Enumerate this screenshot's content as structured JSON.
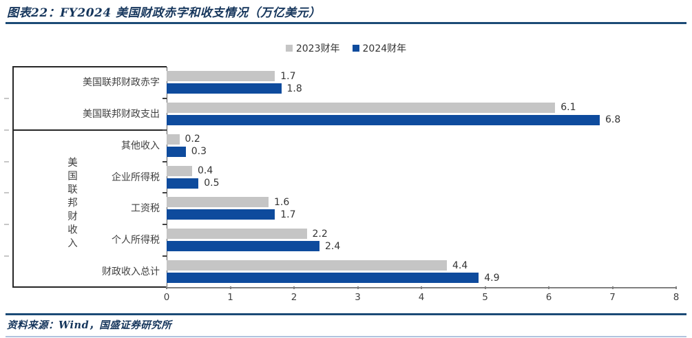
{
  "title": "图表22：FY2024 美国财政赤字和收支情况（万亿美元）",
  "legend": {
    "items": [
      {
        "label": "2023财年",
        "color": "#C5C5C5"
      },
      {
        "label": "2024财年",
        "color": "#0E4B9D"
      }
    ]
  },
  "group_label": "美国联邦财收入",
  "footer": {
    "source": "资料来源：Wind，国盛证券研究所"
  },
  "colors": {
    "title_navy": "#16365C",
    "rule_blue": "#1B4A76",
    "bottom_edge_blue": "#AFC3DE",
    "bar_2023": "#C5C5C5",
    "bar_2024": "#0E4B9D",
    "axis_gray": "#7F7F7F",
    "text_dark": "#404040"
  },
  "chart_data": {
    "type": "bar",
    "orientation": "horizontal",
    "title": "图表22：FY2024 美国财政赤字和收支情况（万亿美元）",
    "categories": [
      "美国联邦财政赤字",
      "美国联邦财政支出",
      "其他收入",
      "企业所得税",
      "工资税",
      "个人所得税",
      "财政收入总计"
    ],
    "series": [
      {
        "name": "2023财年",
        "color": "#C5C5C5",
        "values": [
          1.7,
          6.1,
          0.2,
          0.4,
          1.6,
          2.2,
          4.4
        ]
      },
      {
        "name": "2024财年",
        "color": "#0E4B9D",
        "values": [
          1.8,
          6.8,
          0.3,
          0.5,
          1.7,
          2.4,
          4.9
        ]
      }
    ],
    "xlim": [
      0,
      8
    ],
    "xticks": [
      "0",
      "1",
      "2",
      "3",
      "4",
      "5",
      "6",
      "7",
      "8"
    ],
    "value_labels": true,
    "grid": false,
    "legend_position": "top-center",
    "groups": [
      {
        "label": "",
        "span": [
          0,
          1
        ]
      },
      {
        "label": "美国联邦财收入",
        "span": [
          2,
          6
        ]
      }
    ]
  }
}
